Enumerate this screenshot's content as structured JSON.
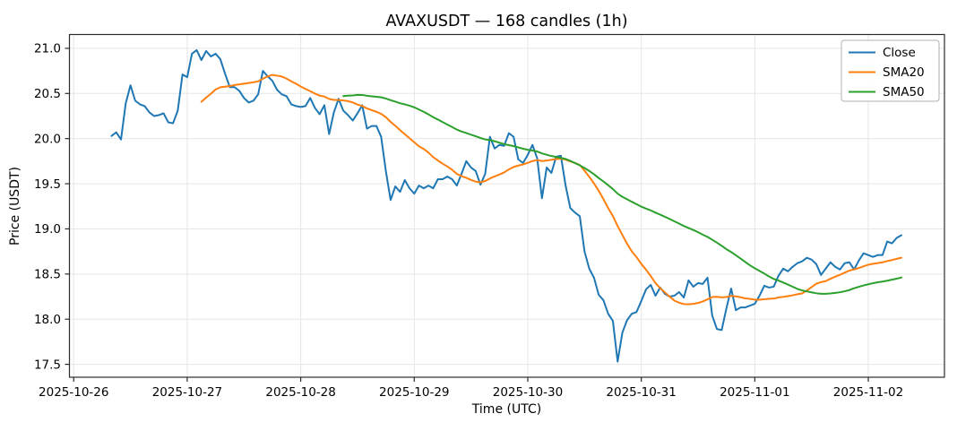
{
  "title": "AVAXUSDT — 168 candles (1h)",
  "colors": {
    "close": "#1f77b4",
    "sma20": "#ff7f0e",
    "sma50": "#2ca02c",
    "grid": "#e6e6e6",
    "spine": "#2b2b2b",
    "text": "#000000",
    "legend_border": "#b0b0b0",
    "background": "#ffffff"
  },
  "axes": {
    "xlabel": "Time (UTC)",
    "ylabel": "Price (USDT)",
    "ytick_labels": [
      "17.5",
      "18.0",
      "18.5",
      "19.0",
      "19.5",
      "20.0",
      "20.5",
      "21.0"
    ],
    "xtick_labels": [
      "2025-10-26",
      "2025-10-27",
      "2025-10-28",
      "2025-10-29",
      "2025-10-30",
      "2025-10-31",
      "2025-11-01",
      "2025-11-02"
    ]
  },
  "legend": {
    "position": "upper right",
    "items": [
      {
        "label": "Close",
        "color": "#1f77b4"
      },
      {
        "label": "SMA20",
        "color": "#ff7f0e"
      },
      {
        "label": "SMA50",
        "color": "#2ca02c"
      }
    ]
  },
  "chart_data": {
    "type": "line",
    "title": "AVAXUSDT — 168 candles (1h)",
    "xlabel": "Time (UTC)",
    "ylabel": "Price (USDT)",
    "symbol": "AVAXUSDT",
    "interval": "1h",
    "candle_count": 168,
    "x_start_utc": "2025-10-26 08:00",
    "x_end_utc": "2025-11-02 07:00",
    "x_unit": "hours since first candle",
    "xlim": [
      -8.9,
      176.1
    ],
    "ylim": [
      17.357,
      21.153
    ],
    "yticks": [
      17.5,
      18.0,
      18.5,
      19.0,
      19.5,
      20.0,
      20.5,
      21.0
    ],
    "xticks_index": [
      -8,
      16,
      40,
      64,
      88,
      112,
      136,
      160
    ],
    "grid": true,
    "legend_position": "upper right",
    "series": [
      {
        "name": "Close",
        "color": "#1f77b4",
        "line_width": 2,
        "values": [
          20.03,
          20.07,
          19.99,
          20.39,
          20.59,
          20.42,
          20.38,
          20.36,
          20.29,
          20.25,
          20.26,
          20.28,
          20.18,
          20.17,
          20.31,
          20.71,
          20.68,
          20.94,
          20.98,
          20.87,
          20.97,
          20.91,
          20.94,
          20.88,
          20.72,
          20.57,
          20.57,
          20.53,
          20.45,
          20.4,
          20.42,
          20.49,
          20.75,
          20.69,
          20.64,
          20.54,
          20.49,
          20.47,
          20.38,
          20.36,
          20.35,
          20.36,
          20.45,
          20.34,
          20.27,
          20.37,
          20.05,
          20.29,
          20.44,
          20.31,
          20.26,
          20.2,
          20.28,
          20.37,
          20.11,
          20.14,
          20.14,
          20.02,
          19.64,
          19.32,
          19.47,
          19.41,
          19.54,
          19.45,
          19.39,
          19.48,
          19.45,
          19.48,
          19.45,
          19.55,
          19.55,
          19.58,
          19.55,
          19.48,
          19.61,
          19.75,
          19.68,
          19.64,
          19.49,
          19.61,
          20.02,
          19.89,
          19.93,
          19.92,
          20.06,
          20.02,
          19.77,
          19.73,
          19.82,
          19.93,
          19.78,
          19.34,
          19.68,
          19.62,
          19.8,
          19.81,
          19.48,
          19.23,
          19.18,
          19.14,
          18.75,
          18.56,
          18.46,
          18.27,
          18.21,
          18.06,
          17.98,
          17.53,
          17.85,
          17.99,
          18.06,
          18.08,
          18.2,
          18.33,
          18.38,
          18.26,
          18.35,
          18.28,
          18.25,
          18.26,
          18.3,
          18.24,
          18.43,
          18.36,
          18.4,
          18.39,
          18.46,
          18.04,
          17.89,
          17.88,
          18.12,
          18.34,
          18.1,
          18.13,
          18.13,
          18.15,
          18.17,
          18.26,
          18.37,
          18.35,
          18.36,
          18.48,
          18.56,
          18.53,
          18.58,
          18.62,
          18.64,
          18.68,
          18.66,
          18.61,
          18.49,
          18.56,
          18.63,
          18.58,
          18.55,
          18.62,
          18.63,
          18.55,
          18.65,
          18.73,
          18.71,
          18.69,
          18.71,
          18.71,
          18.86,
          18.84,
          18.9,
          18.93
        ]
      },
      {
        "name": "SMA20",
        "color": "#ff7f0e",
        "line_width": 2,
        "derived": "rolling mean of Close",
        "window": 20
      },
      {
        "name": "SMA50",
        "color": "#2ca02c",
        "line_width": 2,
        "derived": "rolling mean of Close",
        "window": 50
      }
    ]
  }
}
